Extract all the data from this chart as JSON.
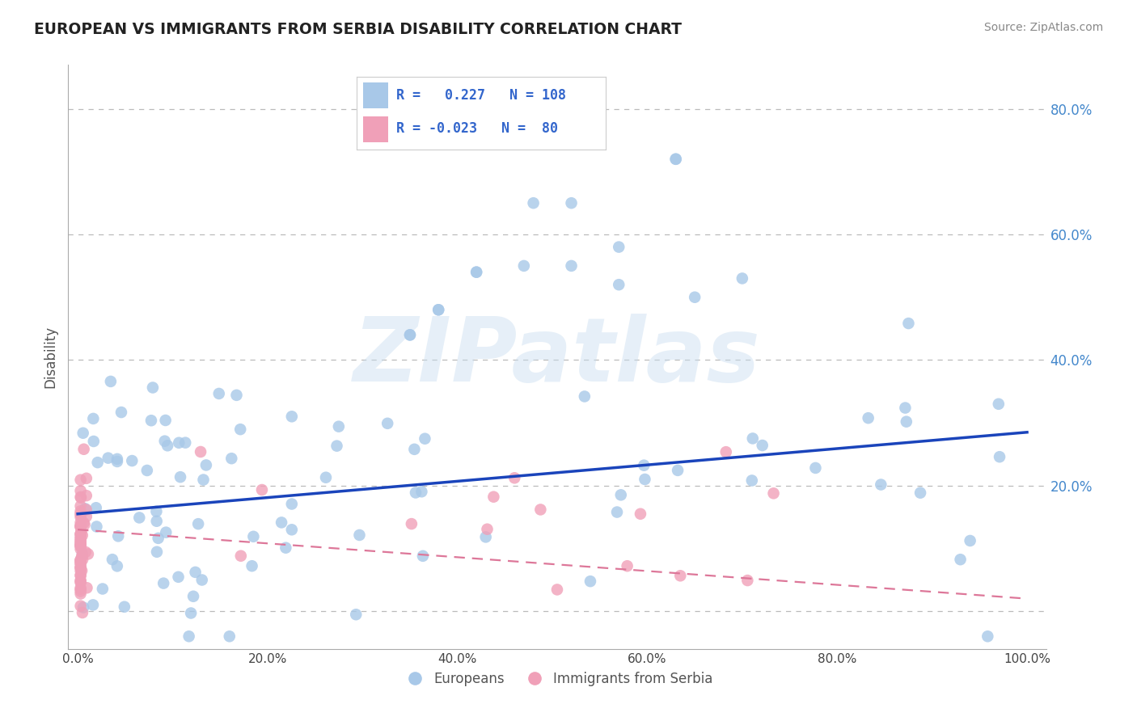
{
  "title": "EUROPEAN VS IMMIGRANTS FROM SERBIA DISABILITY CORRELATION CHART",
  "source": "Source: ZipAtlas.com",
  "ylabel": "Disability",
  "xlim": [
    -0.01,
    1.02
  ],
  "ylim": [
    -0.06,
    0.87
  ],
  "ytick_positions": [
    0.0,
    0.2,
    0.4,
    0.6,
    0.8
  ],
  "xtick_positions": [
    0.0,
    0.2,
    0.4,
    0.6,
    0.8,
    1.0
  ],
  "right_ytick_labels": [
    "",
    "20.0%",
    "40.0%",
    "60.0%",
    "80.0%"
  ],
  "xtick_labels": [
    "0.0%",
    "20.0%",
    "40.0%",
    "60.0%",
    "80.0%",
    "100.0%"
  ],
  "R_european": 0.227,
  "N_european": 108,
  "R_serbia": -0.023,
  "N_serbia": 80,
  "european_color": "#a8c8e8",
  "serbia_color": "#f0a0b8",
  "trend_european_color": "#1a44bb",
  "trend_serbia_color": "#dd7799",
  "legend_labels": [
    "Europeans",
    "Immigrants from Serbia"
  ],
  "watermark": "ZIPatlas",
  "background_color": "#ffffff",
  "grid_color": "#bbbbbb",
  "title_color": "#222222",
  "source_color": "#888888",
  "axis_label_color": "#555555",
  "right_label_color": "#4488cc",
  "legend_text_color": "#3366cc"
}
